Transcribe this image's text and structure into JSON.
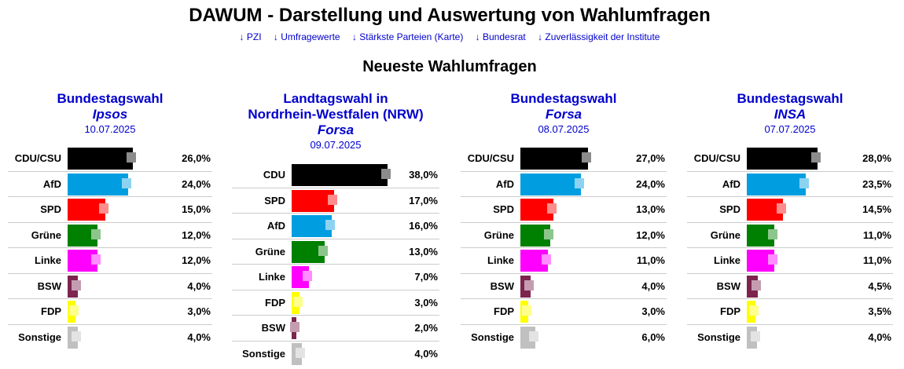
{
  "header": {
    "title": "DAWUM - Darstellung und Auswertung von Wahlumfragen",
    "nav": [
      "↓ PZI",
      "↓ Umfragewerte",
      "↓ Stärkste Parteien (Karte)",
      "↓ Bundesrat",
      "↓ Zuverlässigkeit der Institute"
    ],
    "subtitle": "Neueste Wahlumfragen"
  },
  "colors": {
    "CDU/CSU": "#000000",
    "CDU": "#000000",
    "AfD": "#009ee0",
    "SPD": "#ff0000",
    "Grüne": "#008000",
    "Linke": "#ff00ff",
    "BSW": "#7d254f",
    "FDP": "#ffff00",
    "Sonstige": "#c0c0c0",
    "link": "#0000cc"
  },
  "polls": [
    {
      "election": "Bundestagswahl",
      "institute": "Ipsos",
      "date": "10.07.2025",
      "results": [
        {
          "party": "CDU/CSU",
          "value": 26.0,
          "text": "26,0%"
        },
        {
          "party": "AfD",
          "value": 24.0,
          "text": "24,0%"
        },
        {
          "party": "SPD",
          "value": 15.0,
          "text": "15,0%"
        },
        {
          "party": "Grüne",
          "value": 12.0,
          "text": "12,0%"
        },
        {
          "party": "Linke",
          "value": 12.0,
          "text": "12,0%"
        },
        {
          "party": "BSW",
          "value": 4.0,
          "text": "4,0%"
        },
        {
          "party": "FDP",
          "value": 3.0,
          "text": "3,0%"
        },
        {
          "party": "Sonstige",
          "value": 4.0,
          "text": "4,0%"
        }
      ]
    },
    {
      "election": "Landtagswahl in Nordrhein-Westfalen (NRW)",
      "institute": "Forsa",
      "date": "09.07.2025",
      "results": [
        {
          "party": "CDU",
          "value": 38.0,
          "text": "38,0%"
        },
        {
          "party": "SPD",
          "value": 17.0,
          "text": "17,0%"
        },
        {
          "party": "AfD",
          "value": 16.0,
          "text": "16,0%"
        },
        {
          "party": "Grüne",
          "value": 13.0,
          "text": "13,0%"
        },
        {
          "party": "Linke",
          "value": 7.0,
          "text": "7,0%"
        },
        {
          "party": "FDP",
          "value": 3.0,
          "text": "3,0%"
        },
        {
          "party": "BSW",
          "value": 2.0,
          "text": "2,0%"
        },
        {
          "party": "Sonstige",
          "value": 4.0,
          "text": "4,0%"
        }
      ]
    },
    {
      "election": "Bundestagswahl",
      "institute": "Forsa",
      "date": "08.07.2025",
      "results": [
        {
          "party": "CDU/CSU",
          "value": 27.0,
          "text": "27,0%"
        },
        {
          "party": "AfD",
          "value": 24.0,
          "text": "24,0%"
        },
        {
          "party": "SPD",
          "value": 13.0,
          "text": "13,0%"
        },
        {
          "party": "Grüne",
          "value": 12.0,
          "text": "12,0%"
        },
        {
          "party": "Linke",
          "value": 11.0,
          "text": "11,0%"
        },
        {
          "party": "BSW",
          "value": 4.0,
          "text": "4,0%"
        },
        {
          "party": "FDP",
          "value": 3.0,
          "text": "3,0%"
        },
        {
          "party": "Sonstige",
          "value": 6.0,
          "text": "6,0%"
        }
      ]
    },
    {
      "election": "Bundestagswahl",
      "institute": "INSA",
      "date": "07.07.2025",
      "results": [
        {
          "party": "CDU/CSU",
          "value": 28.0,
          "text": "28,0%"
        },
        {
          "party": "AfD",
          "value": 23.5,
          "text": "23,5%"
        },
        {
          "party": "SPD",
          "value": 14.5,
          "text": "14,5%"
        },
        {
          "party": "Grüne",
          "value": 11.0,
          "text": "11,0%"
        },
        {
          "party": "Linke",
          "value": 11.0,
          "text": "11,0%"
        },
        {
          "party": "BSW",
          "value": 4.5,
          "text": "4,5%"
        },
        {
          "party": "FDP",
          "value": 3.5,
          "text": "3,5%"
        },
        {
          "party": "Sonstige",
          "value": 4.0,
          "text": "4,0%"
        }
      ]
    }
  ]
}
